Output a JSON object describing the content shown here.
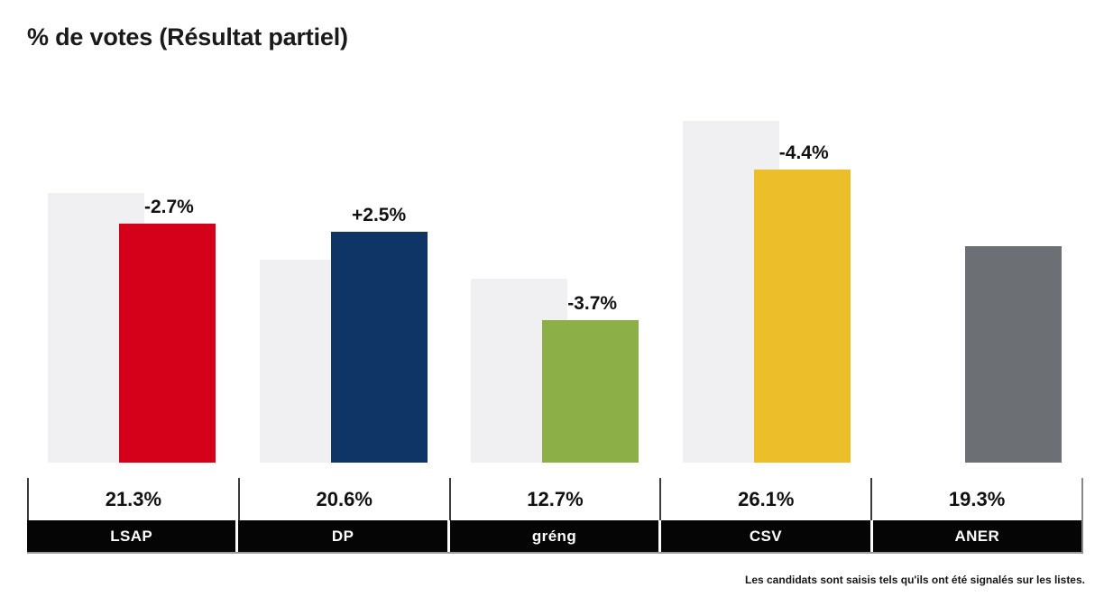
{
  "title": "% de votes (Résultat partiel)",
  "footnote": "Les candidats sont saisis tels qu'ils ont été signalés sur les listes.",
  "colors": {
    "previous_bar": "#f0eff1",
    "table_name_bg": "#050505",
    "table_name_text": "#ffffff",
    "title_text": "#1a1a1a"
  },
  "chart_data": {
    "type": "bar",
    "title": "% de votes (Résultat partiel)",
    "unit": "%",
    "categories": [
      "LSAP",
      "DP",
      "gréng",
      "CSV",
      "ANER"
    ],
    "series": [
      {
        "name": "previous",
        "values": [
          24.0,
          18.1,
          16.4,
          30.5,
          null
        ]
      },
      {
        "name": "current",
        "values": [
          21.3,
          20.6,
          12.7,
          26.1,
          19.3
        ]
      }
    ],
    "delta_labels": [
      "-2.7%",
      "+2.5%",
      "-3.7%",
      "-4.4%",
      null
    ],
    "value_labels": [
      "21.3%",
      "20.6%",
      "12.7%",
      "26.1%",
      "19.3%"
    ],
    "bar_colors": [
      "#d50019",
      "#0e3566",
      "#8cb047",
      "#ecbe2a",
      "#6c7075"
    ],
    "previous_bar_color": "#f0eff1",
    "ylim": [
      0,
      41.2
    ],
    "grid": false,
    "legend": "none",
    "axes_visible": false
  }
}
